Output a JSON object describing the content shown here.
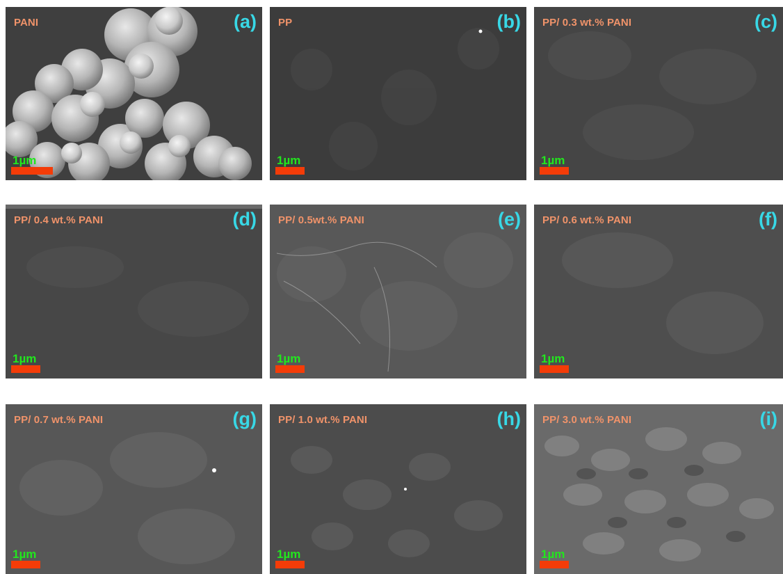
{
  "panels": [
    {
      "id": "a",
      "caption": "PANI",
      "letter": "(a)",
      "scale": "1µm"
    },
    {
      "id": "b",
      "caption": "PP",
      "letter": "(b)",
      "scale": "1µm"
    },
    {
      "id": "c",
      "caption": "PP/ 0.3 wt.% PANI",
      "letter": "(c)",
      "scale": "1µm"
    },
    {
      "id": "d",
      "caption": "PP/ 0.4 wt.% PANI",
      "letter": "(d)",
      "scale": "1µm"
    },
    {
      "id": "e",
      "caption": "PP/ 0.5wt.% PANI",
      "letter": "(e)",
      "scale": "1µm"
    },
    {
      "id": "f",
      "caption": "PP/ 0.6 wt.% PANI",
      "letter": "(f)",
      "scale": "1µm"
    },
    {
      "id": "g",
      "caption": "PP/ 0.7 wt.% PANI",
      "letter": "(g)",
      "scale": "1µm"
    },
    {
      "id": "h",
      "caption": "PP/ 1.0 wt.% PANI",
      "letter": "(h)",
      "scale": "1µm"
    },
    {
      "id": "i",
      "caption": "PP/ 3.0 wt.% PANI",
      "letter": "(i)",
      "scale": "1µm"
    }
  ],
  "colors": {
    "caption": "#f0936a",
    "letter": "#38d8e6",
    "scale_text": "#22e61e",
    "scale_bar": "#f43c08"
  }
}
